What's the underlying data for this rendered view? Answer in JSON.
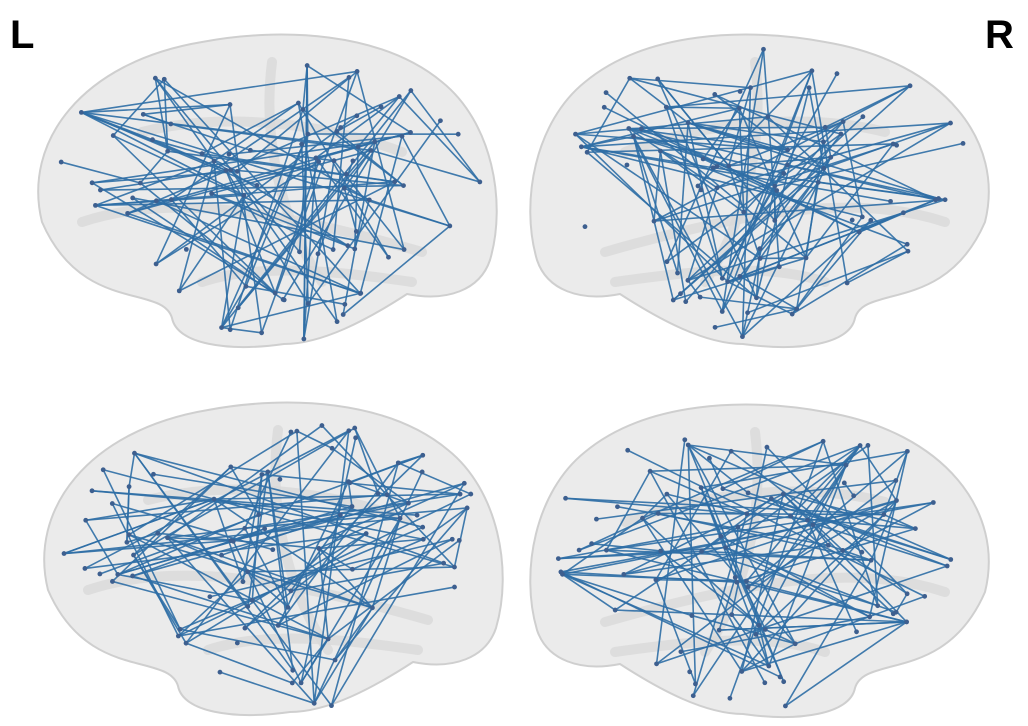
{
  "labels": {
    "left": "L",
    "right": "R"
  }
}
